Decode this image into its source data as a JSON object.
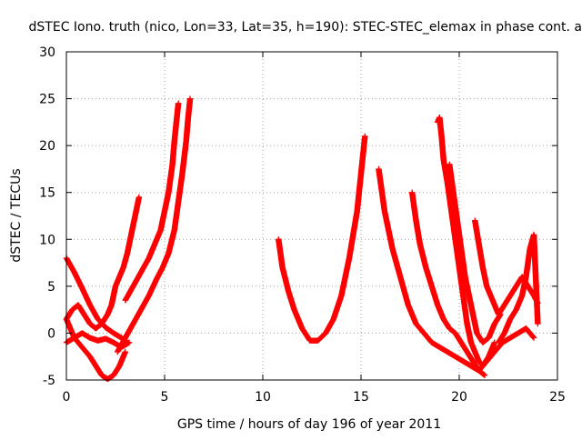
{
  "chart_data": {
    "type": "scatter",
    "title": "dSTEC Iono. truth (nico, Lon=33, Lat=35, h=190): STEC-STEC_elemax in phase cont. a",
    "xlabel": "GPS time / hours of day 196 of year 2011",
    "ylabel": "dSTEC  / TECUs",
    "xlim": [
      0,
      25
    ],
    "ylim": [
      -5,
      30
    ],
    "xticks": [
      "0",
      "5",
      "10",
      "15",
      "20",
      "25"
    ],
    "yticks": [
      "-5",
      "0",
      "5",
      "10",
      "15",
      "20",
      "25",
      "30"
    ],
    "grid": true,
    "marker": "+",
    "color": "#ff0000",
    "series": [
      {
        "x": [
          0.0,
          0.4,
          0.8,
          1.2,
          1.6,
          2.0,
          2.4,
          2.8,
          3.1
        ],
        "y": [
          8.0,
          6.5,
          4.8,
          3.0,
          1.5,
          0.6,
          0.0,
          -0.5,
          -1.0
        ]
      },
      {
        "x": [
          0.0,
          0.4,
          0.8,
          1.2,
          1.5,
          1.8,
          2.1,
          2.4,
          2.7,
          3.0
        ],
        "y": [
          1.5,
          -0.5,
          -1.5,
          -2.5,
          -3.5,
          -4.5,
          -4.9,
          -4.5,
          -3.5,
          -2.0
        ]
      },
      {
        "x": [
          0.0,
          0.3,
          0.6,
          0.9,
          1.2,
          1.5,
          1.8,
          2.1,
          2.3,
          2.5,
          2.7,
          2.9,
          3.1,
          3.3,
          3.5,
          3.7
        ],
        "y": [
          1.5,
          2.5,
          3.0,
          2.0,
          1.0,
          0.5,
          1.0,
          2.0,
          3.0,
          5.0,
          6.0,
          7.0,
          8.5,
          10.5,
          12.5,
          14.5
        ]
      },
      {
        "x": [
          0.0,
          0.4,
          0.8,
          1.2,
          1.6,
          2.0,
          2.4,
          2.8,
          3.2
        ],
        "y": [
          -1.0,
          -0.5,
          0.0,
          -0.5,
          -0.8,
          -0.6,
          -1.0,
          -1.5,
          -1.0
        ]
      },
      {
        "x": [
          2.6,
          3.0,
          3.4,
          3.8,
          4.2,
          4.6,
          4.9,
          5.2,
          5.5,
          5.7,
          5.9,
          6.1,
          6.2,
          6.3
        ],
        "y": [
          -2.0,
          -0.5,
          1.0,
          2.5,
          4.0,
          5.8,
          7.0,
          8.5,
          11.0,
          14.0,
          17.0,
          20.5,
          23.0,
          25.0
        ]
      },
      {
        "x": [
          3.0,
          3.4,
          3.8,
          4.2,
          4.5,
          4.8,
          5.0,
          5.2,
          5.4,
          5.5,
          5.6,
          5.7
        ],
        "y": [
          3.5,
          5.0,
          6.5,
          8.0,
          9.5,
          11.0,
          13.0,
          15.0,
          18.0,
          20.5,
          22.5,
          24.5
        ]
      },
      {
        "x": [
          10.8,
          11.0,
          11.3,
          11.6,
          12.0,
          12.4,
          12.8,
          13.2,
          13.6,
          14.0,
          14.4,
          14.8,
          15.0,
          15.2
        ],
        "y": [
          10.0,
          7.0,
          4.5,
          2.5,
          0.5,
          -0.8,
          -0.8,
          0.0,
          1.5,
          4.0,
          8.0,
          13.0,
          17.0,
          21.0
        ]
      },
      {
        "x": [
          15.9,
          16.2,
          16.6,
          17.0,
          17.4,
          17.8,
          18.2,
          18.6,
          19.0,
          19.4,
          19.8,
          20.2,
          20.6,
          21.0,
          21.4,
          21.8,
          22.2,
          22.6,
          23.0,
          23.4,
          23.8
        ],
        "y": [
          17.5,
          13.0,
          9.0,
          6.0,
          3.0,
          1.0,
          0.0,
          -1.0,
          -1.5,
          -2.0,
          -2.5,
          -3.0,
          -3.5,
          -4.0,
          -3.0,
          -2.0,
          -1.0,
          -0.5,
          0.0,
          0.5,
          -0.5
        ]
      },
      {
        "x": [
          17.6,
          17.8,
          18.0,
          18.3,
          18.6,
          18.9,
          19.2,
          19.5,
          19.8,
          20.1,
          20.4,
          20.7,
          21.0,
          21.3
        ],
        "y": [
          15.0,
          12.0,
          9.5,
          7.0,
          5.0,
          3.0,
          1.5,
          0.5,
          0.0,
          -1.0,
          -2.0,
          -3.0,
          -4.0,
          -4.5
        ]
      },
      {
        "x": [
          18.9,
          19.0,
          19.1,
          19.2,
          19.4,
          19.6,
          19.8,
          20.0,
          20.2,
          20.4,
          20.6,
          20.8,
          21.0,
          21.2,
          21.5,
          21.8
        ],
        "y": [
          22.5,
          23.0,
          21.0,
          18.5,
          16.0,
          13.0,
          10.0,
          7.0,
          4.0,
          1.0,
          -1.0,
          -2.0,
          -3.0,
          -3.5,
          -2.5,
          -1.0
        ]
      },
      {
        "x": [
          19.5,
          19.7,
          19.9,
          20.1,
          20.3,
          20.5,
          20.7,
          20.9,
          21.2,
          21.5,
          21.8,
          22.1
        ],
        "y": [
          18.0,
          15.0,
          12.0,
          9.0,
          6.0,
          4.0,
          2.0,
          0.0,
          -1.0,
          -0.5,
          1.0,
          2.0
        ]
      },
      {
        "x": [
          20.8,
          21.0,
          21.2,
          21.4,
          21.6,
          21.8,
          22.0,
          22.3,
          22.6,
          22.9,
          23.2,
          23.5,
          23.8,
          24.0
        ],
        "y": [
          12.0,
          9.5,
          7.0,
          5.0,
          4.0,
          3.0,
          2.0,
          3.0,
          4.0,
          5.0,
          6.0,
          5.0,
          4.0,
          3.2
        ]
      },
      {
        "x": [
          22.0,
          22.3,
          22.6,
          22.9,
          23.2,
          23.4,
          23.6,
          23.8,
          24.0
        ],
        "y": [
          -1.0,
          0.0,
          1.5,
          2.5,
          4.0,
          6.0,
          9.0,
          10.5,
          1.0
        ]
      }
    ]
  }
}
